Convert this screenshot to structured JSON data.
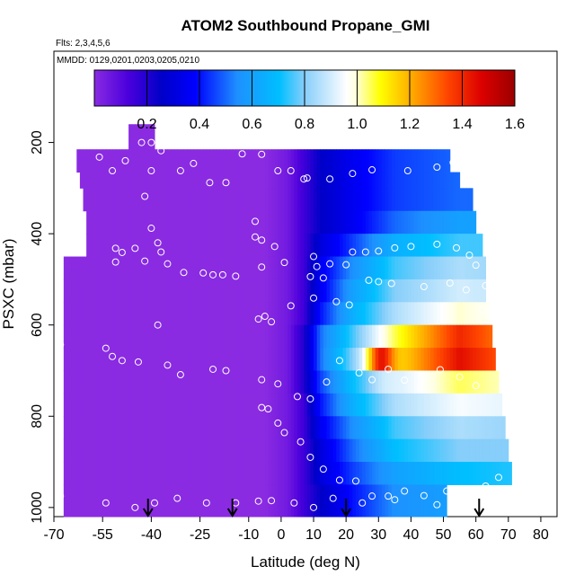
{
  "chart_data": {
    "type": "heatmap",
    "title": "ATOM2 Southbound Propane_GMI",
    "flights_note": "Flts: 2,3,4,5,6",
    "dates_note": "MMDD: 0129,0201,0203,0205,0210",
    "xlabel": "Latitude (deg N)",
    "ylabel": "PSXC (mbar)",
    "xlim": [
      -70,
      85
    ],
    "ylim": [
      1020,
      0
    ],
    "x_ticks": [
      -70,
      -55,
      -40,
      -25,
      -10,
      0,
      10,
      20,
      30,
      40,
      50,
      60,
      70,
      80
    ],
    "y_ticks": [
      200,
      400,
      600,
      800,
      1000
    ],
    "colorbar": {
      "min": 0.0,
      "max": 1.6,
      "ticks": [
        0.2,
        0.4,
        0.6,
        0.8,
        1.0,
        1.2,
        1.4,
        1.6
      ],
      "tick_labels": [
        "0.2",
        "0.4",
        "0.6",
        "0.8",
        "1.0",
        "1.2",
        "1.4",
        "1.6"
      ],
      "colors": [
        "#8a2be2",
        "#4b00dc",
        "#0000c8",
        "#0000ff",
        "#1e90ff",
        "#00bfff",
        "#87cefa",
        "#ffffff",
        "#ffffe0",
        "#ffff00",
        "#ffa500",
        "#ff4500",
        "#dd0000",
        "#9b0000"
      ],
      "color_stops": [
        0.0,
        0.08,
        0.16,
        0.24,
        0.34,
        0.44,
        0.5,
        0.6,
        0.62,
        0.68,
        0.76,
        0.84,
        0.92,
        1.0
      ]
    },
    "p_bins": [
      [
        160,
        215
      ],
      [
        215,
        265
      ],
      [
        265,
        300
      ],
      [
        300,
        350
      ],
      [
        350,
        400
      ],
      [
        400,
        450
      ],
      [
        450,
        500
      ],
      [
        500,
        550
      ],
      [
        550,
        600
      ],
      [
        600,
        650
      ],
      [
        650,
        700
      ],
      [
        700,
        750
      ],
      [
        750,
        800
      ],
      [
        800,
        850
      ],
      [
        850,
        900
      ],
      [
        900,
        950
      ],
      [
        950,
        1020
      ]
    ],
    "extents": [
      [
        -47,
        -39
      ],
      [
        -63,
        52
      ],
      [
        -62,
        55
      ],
      [
        -61,
        59
      ],
      [
        -60,
        60
      ],
      [
        -60,
        62
      ],
      [
        -67,
        63
      ],
      [
        -67,
        63
      ],
      [
        -67,
        64
      ],
      [
        -67,
        65
      ],
      [
        -67,
        66
      ],
      [
        -67,
        67
      ],
      [
        -67,
        68
      ],
      [
        -67,
        69
      ],
      [
        -67,
        70
      ],
      [
        -67,
        71
      ],
      [
        -67,
        51
      ]
    ],
    "field_profiles": [
      [
        -70,
        0.0
      ],
      [
        -5,
        0.0
      ],
      [
        2,
        0.05
      ],
      [
        7,
        0.15
      ],
      [
        12,
        0.25
      ],
      [
        22,
        0.35
      ],
      [
        35,
        0.45
      ],
      [
        55,
        0.5
      ],
      [
        85,
        0.5
      ]
    ],
    "field_boosts": [
      [
        0.0,
        0.0,
        0.0,
        0.0,
        0.0,
        0.0,
        0.0,
        0.0,
        0.0
      ],
      [
        0.0,
        0.0,
        0.0,
        0.0,
        0.0,
        0.0,
        0.0,
        0.0,
        0.0
      ],
      [
        0.0,
        0.0,
        0.0,
        0.0,
        0.0,
        0.0,
        0.0,
        0.0,
        0.0
      ],
      [
        0.0,
        0.0,
        0.0,
        0.0,
        0.0,
        0.0,
        0.0,
        0.0,
        0.0
      ],
      [
        0.0,
        0.0,
        0.0,
        0.0,
        0.0,
        0.0,
        0.05,
        0.1,
        0.1
      ],
      [
        0.0,
        0.0,
        0.0,
        0.0,
        0.05,
        0.1,
        0.2,
        0.25,
        0.25
      ],
      [
        0.0,
        0.0,
        0.0,
        0.0,
        0.1,
        0.2,
        0.3,
        0.35,
        0.3
      ],
      [
        0.0,
        0.0,
        0.0,
        0.0,
        0.1,
        0.25,
        0.35,
        0.4,
        0.35
      ],
      [
        0.0,
        0.0,
        0.0,
        0.0,
        0.15,
        0.3,
        0.4,
        0.5,
        0.4
      ],
      [
        0.0,
        0.0,
        0.0,
        0.05,
        0.25,
        0.4,
        0.6,
        0.9,
        0.6
      ],
      [
        0.0,
        0.0,
        0.0,
        0.05,
        0.25,
        0.45,
        0.65,
        0.95,
        0.65
      ],
      [
        0.0,
        0.0,
        0.0,
        0.05,
        0.2,
        0.35,
        0.45,
        0.55,
        0.45
      ],
      [
        0.0,
        0.0,
        0.0,
        0.0,
        0.15,
        0.3,
        0.4,
        0.45,
        0.4
      ],
      [
        0.0,
        0.0,
        0.0,
        0.0,
        0.1,
        0.2,
        0.3,
        0.35,
        0.3
      ],
      [
        0.0,
        0.0,
        0.0,
        0.0,
        0.05,
        0.15,
        0.25,
        0.3,
        0.3
      ],
      [
        0.0,
        0.0,
        0.0,
        0.0,
        0.05,
        0.1,
        0.15,
        0.2,
        0.25
      ],
      [
        0.0,
        0.0,
        0.0,
        0.0,
        0.0,
        0.05,
        0.1,
        0.1,
        0.1
      ]
    ],
    "hotspots": [
      {
        "lat": 31,
        "p": 680,
        "value": 1.45,
        "lat_radius": 4,
        "p_radius": 28
      },
      {
        "lat": 55,
        "p": 650,
        "value": 1.0,
        "lat_radius": 2,
        "p_radius": 25
      },
      {
        "lat": 36,
        "p": 620,
        "value": 0.75,
        "lat_radius": 5,
        "p_radius": 40
      }
    ],
    "samples": [
      [
        -43,
        200
      ],
      [
        -40,
        200
      ],
      [
        -37,
        218
      ],
      [
        -56,
        232
      ],
      [
        -48,
        240
      ],
      [
        -52,
        262
      ],
      [
        -40,
        262
      ],
      [
        -31,
        262
      ],
      [
        -22,
        288
      ],
      [
        -17,
        288
      ],
      [
        -27,
        246
      ],
      [
        -12,
        225
      ],
      [
        -6,
        226
      ],
      [
        -1,
        262
      ],
      [
        3,
        262
      ],
      [
        7,
        280
      ],
      [
        8,
        278
      ],
      [
        15,
        280
      ],
      [
        22,
        268
      ],
      [
        28,
        260
      ],
      [
        39,
        262
      ],
      [
        48,
        254
      ],
      [
        53,
        244
      ],
      [
        63,
        267
      ],
      [
        -42,
        318
      ],
      [
        -40,
        388
      ],
      [
        -38,
        420
      ],
      [
        -37,
        440
      ],
      [
        -45,
        432
      ],
      [
        -42,
        460
      ],
      [
        -51,
        462
      ],
      [
        -49,
        441
      ],
      [
        -51,
        432
      ],
      [
        -35,
        466
      ],
      [
        -30,
        485
      ],
      [
        -24,
        486
      ],
      [
        -21,
        490
      ],
      [
        -18,
        490
      ],
      [
        -14,
        493
      ],
      [
        -8,
        373
      ],
      [
        -8,
        407
      ],
      [
        -6,
        414
      ],
      [
        -2,
        428
      ],
      [
        -6,
        473
      ],
      [
        1,
        463
      ],
      [
        10,
        450
      ],
      [
        11,
        472
      ],
      [
        15,
        466
      ],
      [
        20,
        468
      ],
      [
        22,
        440
      ],
      [
        26,
        440
      ],
      [
        30,
        438
      ],
      [
        35,
        431
      ],
      [
        40,
        428
      ],
      [
        48,
        423
      ],
      [
        54,
        431
      ],
      [
        58,
        447
      ],
      [
        60,
        469
      ],
      [
        -7,
        587
      ],
      [
        -5,
        581
      ],
      [
        -3,
        593
      ],
      [
        3,
        558
      ],
      [
        10,
        541
      ],
      [
        9,
        494
      ],
      [
        13,
        497
      ],
      [
        17,
        549
      ],
      [
        21,
        556
      ],
      [
        27,
        502
      ],
      [
        30,
        505
      ],
      [
        34,
        509
      ],
      [
        44,
        516
      ],
      [
        52,
        508
      ],
      [
        57,
        523
      ],
      [
        63,
        514
      ],
      [
        62,
        566
      ],
      [
        66,
        570
      ],
      [
        -68,
        643
      ],
      [
        -54,
        651
      ],
      [
        -52,
        669
      ],
      [
        -49,
        678
      ],
      [
        -44,
        681
      ],
      [
        -38,
        600
      ],
      [
        -35,
        688
      ],
      [
        -31,
        709
      ],
      [
        -21,
        697
      ],
      [
        -17,
        700
      ],
      [
        -6,
        720
      ],
      [
        -1,
        729
      ],
      [
        5,
        757
      ],
      [
        9,
        762
      ],
      [
        14,
        725
      ],
      [
        18,
        678
      ],
      [
        24,
        705
      ],
      [
        28,
        720
      ],
      [
        33,
        697
      ],
      [
        38,
        721
      ],
      [
        44,
        708
      ],
      [
        49,
        698
      ],
      [
        55,
        714
      ],
      [
        60,
        733
      ],
      [
        -6,
        781
      ],
      [
        -4,
        784
      ],
      [
        -1,
        815
      ],
      [
        1,
        836
      ],
      [
        6,
        856
      ],
      [
        9,
        890
      ],
      [
        13,
        916
      ],
      [
        18,
        940
      ],
      [
        23,
        942
      ],
      [
        28,
        975
      ],
      [
        33,
        975
      ],
      [
        38,
        964
      ],
      [
        44,
        974
      ],
      [
        51,
        964
      ],
      [
        57,
        972
      ],
      [
        63,
        953
      ],
      [
        67,
        934
      ],
      [
        -68,
        975
      ],
      [
        -54,
        990
      ],
      [
        -45,
        1000
      ],
      [
        -39,
        990
      ],
      [
        -32,
        980
      ],
      [
        -23,
        990
      ],
      [
        -14,
        990
      ],
      [
        -7,
        986
      ],
      [
        -3,
        985
      ],
      [
        4,
        990
      ],
      [
        10,
        1000
      ],
      [
        16,
        980
      ],
      [
        25,
        990
      ],
      [
        35,
        983
      ],
      [
        48,
        994
      ]
    ],
    "arrows": [
      -41,
      -15,
      20,
      61
    ]
  }
}
